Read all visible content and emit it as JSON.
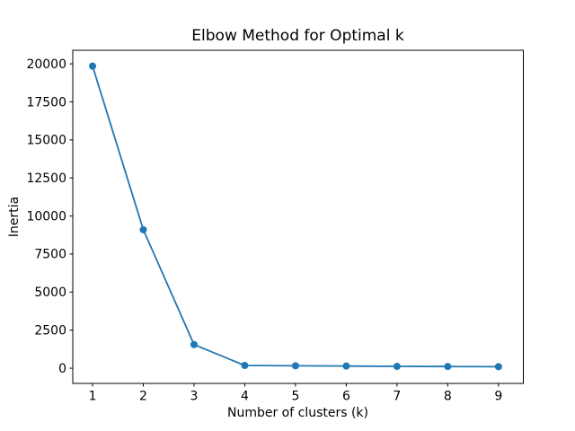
{
  "chart_data": {
    "type": "line",
    "title": "Elbow Method for Optimal k",
    "xlabel": "Number of clusters (k)",
    "ylabel": "Inertia",
    "x": [
      1,
      2,
      3,
      4,
      5,
      6,
      7,
      8,
      9
    ],
    "y": [
      19850,
      9100,
      1550,
      180,
      160,
      140,
      120,
      110,
      100
    ],
    "xticks": [
      1,
      2,
      3,
      4,
      5,
      6,
      7,
      8,
      9
    ],
    "yticks": [
      0,
      2500,
      5000,
      7500,
      10000,
      12500,
      15000,
      17500,
      20000
    ],
    "xlim": [
      0.61,
      9.49
    ],
    "ylim": [
      -1000,
      20890
    ],
    "grid": false,
    "legend": null,
    "marker": "o",
    "line_color": "#1f77b4",
    "marker_color": "#1f77b4",
    "axis_color": "#000000",
    "background_color": "#ffffff"
  }
}
